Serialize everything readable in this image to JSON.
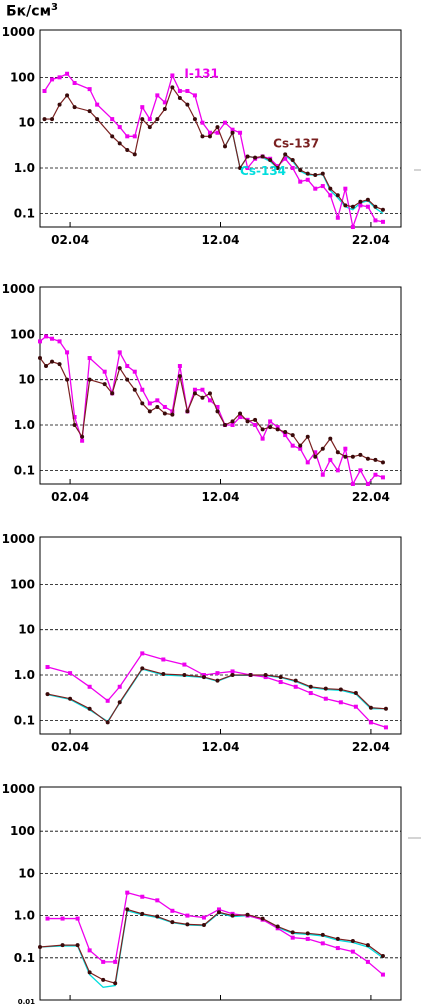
{
  "unit_label": "Бк/см3",
  "colors": {
    "I-131": "#ee00ee",
    "Cs-137": "#7a2020",
    "Cs-134": "#00dddd",
    "marker_dark": "#3a0a0a"
  },
  "chart_data": [
    {
      "type": "line",
      "yscale": "log",
      "ylim": [
        0.05,
        1000
      ],
      "xlim": [
        0,
        24
      ],
      "yticks": [
        "0.1",
        "1.0",
        "10",
        "100",
        "1000"
      ],
      "xticks": [
        "02.04",
        "12.04",
        "22.04"
      ],
      "grid": true,
      "series": [
        {
          "name": "I-131",
          "color": "#ee00ee",
          "x": [
            0.3,
            0.8,
            1.3,
            1.8,
            2.3,
            3.3,
            3.8,
            4.8,
            5.3,
            5.8,
            6.3,
            6.8,
            7.3,
            7.8,
            8.3,
            8.8,
            9.3,
            9.8,
            10.3,
            10.8,
            11.3,
            11.8,
            12.3,
            12.8,
            13.3,
            13.8,
            14.3,
            14.8,
            15.3,
            15.8,
            16.3,
            16.8,
            17.3,
            17.8,
            18.3,
            18.8,
            19.3,
            19.8,
            20.3,
            20.8,
            21.3,
            21.8,
            22.3,
            22.8
          ],
          "y": [
            50,
            90,
            100,
            120,
            75,
            55,
            25,
            12,
            8,
            5,
            5,
            22,
            12,
            40,
            28,
            110,
            50,
            50,
            40,
            10,
            6,
            6,
            10,
            7,
            6,
            1.0,
            1.6,
            1.8,
            1.6,
            1.1,
            1.6,
            1.0,
            0.5,
            0.55,
            0.35,
            0.4,
            0.25,
            0.08,
            0.35,
            0.05,
            0.15,
            0.14,
            0.07,
            0.065
          ]
        },
        {
          "name": "Cs-137",
          "color": "#7a2020",
          "x": [
            0.3,
            0.8,
            1.3,
            1.8,
            2.3,
            3.3,
            3.8,
            4.8,
            5.3,
            5.8,
            6.3,
            6.8,
            7.3,
            7.8,
            8.3,
            8.8,
            9.3,
            9.8,
            10.3,
            10.8,
            11.3,
            11.8,
            12.3,
            12.8,
            13.3,
            13.8,
            14.3,
            14.8,
            15.3,
            15.8,
            16.3,
            16.8,
            17.3,
            17.8,
            18.3,
            18.8,
            19.3,
            19.8,
            20.3,
            20.8,
            21.3,
            21.8,
            22.3,
            22.8
          ],
          "y": [
            12,
            12,
            25,
            40,
            22,
            18,
            12,
            5,
            3.5,
            2.5,
            2,
            12,
            8,
            12,
            20,
            60,
            35,
            25,
            12,
            5,
            5,
            8,
            3,
            6,
            1.0,
            1.8,
            1.7,
            1.8,
            1.5,
            1.0,
            2.0,
            1.5,
            0.9,
            0.75,
            0.7,
            0.75,
            0.35,
            0.25,
            0.15,
            0.14,
            0.18,
            0.2,
            0.14,
            0.12
          ]
        },
        {
          "name": "Cs-134",
          "color": "#00dddd",
          "x": [
            12.3,
            12.8,
            13.3,
            13.8,
            14.3,
            14.8,
            15.3,
            15.8,
            16.3,
            16.8,
            17.3,
            17.8,
            18.3,
            18.8,
            19.3,
            19.8,
            20.3,
            20.8,
            21.3,
            21.8,
            22.3,
            22.8
          ],
          "y": [
            3,
            6,
            1.0,
            1.8,
            1.7,
            1.7,
            1.4,
            1.0,
            1.9,
            1.4,
            0.85,
            0.7,
            0.7,
            0.72,
            0.32,
            0.22,
            0.14,
            0.12,
            0.17,
            0.19,
            0.13,
            0.1
          ]
        }
      ],
      "annotations": [
        "I-131",
        "Cs-137",
        "Cs-134"
      ]
    },
    {
      "type": "line",
      "yscale": "log",
      "ylim": [
        0.05,
        1000
      ],
      "xlim": [
        0,
        24
      ],
      "yticks": [
        "0.1",
        "1.0",
        "10",
        "100",
        "1000"
      ],
      "xticks": [
        "02.04",
        "12.04",
        "22.04"
      ],
      "grid": true,
      "series": [
        {
          "name": "I-131",
          "color": "#ee00ee",
          "x": [
            0,
            0.4,
            0.8,
            1.3,
            1.8,
            2.3,
            2.8,
            3.3,
            4.3,
            4.8,
            5.3,
            5.8,
            6.3,
            6.8,
            7.3,
            7.8,
            8.3,
            8.8,
            9.3,
            9.8,
            10.3,
            10.8,
            11.3,
            11.8,
            12.3,
            12.8,
            13.3,
            13.8,
            14.3,
            14.8,
            15.3,
            15.8,
            16.3,
            16.8,
            17.3,
            17.8,
            18.3,
            18.8,
            19.3,
            19.8,
            20.3,
            20.8,
            21.3,
            21.8,
            22.3,
            22.8
          ],
          "y": [
            70,
            90,
            80,
            70,
            40,
            1.5,
            0.45,
            30,
            15,
            5,
            40,
            20,
            15,
            6,
            3,
            3.5,
            2.5,
            2,
            20,
            2,
            6,
            6,
            3.5,
            2.5,
            1.0,
            1.0,
            1.5,
            1.3,
            1.0,
            0.5,
            1.2,
            0.9,
            0.6,
            0.35,
            0.3,
            0.15,
            0.25,
            0.08,
            0.17,
            0.1,
            0.3,
            0.05,
            0.1,
            0.05,
            0.08,
            0.07
          ]
        },
        {
          "name": "Cs-137",
          "color": "#7a2020",
          "x": [
            0,
            0.4,
            0.8,
            1.3,
            1.8,
            2.3,
            2.8,
            3.3,
            4.3,
            4.8,
            5.3,
            5.8,
            6.3,
            6.8,
            7.3,
            7.8,
            8.3,
            8.8,
            9.3,
            9.8,
            10.3,
            10.8,
            11.3,
            11.8,
            12.3,
            12.8,
            13.3,
            13.8,
            14.3,
            14.8,
            15.3,
            15.8,
            16.3,
            16.8,
            17.3,
            17.8,
            18.3,
            18.8,
            19.3,
            19.8,
            20.3,
            20.8,
            21.3,
            21.8,
            22.3,
            22.8
          ],
          "y": [
            30,
            20,
            25,
            22,
            10,
            1.0,
            0.55,
            10,
            8,
            5,
            18,
            10,
            6,
            3,
            2,
            2.5,
            1.8,
            1.7,
            12,
            2,
            5,
            4,
            5,
            2,
            1.0,
            1.2,
            1.8,
            1.2,
            1.3,
            0.8,
            0.9,
            0.8,
            0.7,
            0.6,
            0.35,
            0.55,
            0.2,
            0.3,
            0.5,
            0.25,
            0.2,
            0.2,
            0.22,
            0.18,
            0.17,
            0.15
          ]
        }
      ]
    },
    {
      "type": "line",
      "yscale": "log",
      "ylim": [
        0.05,
        1000
      ],
      "xlim": [
        0,
        24
      ],
      "yticks": [
        "0.1",
        "1.0",
        "10",
        "100",
        "1000"
      ],
      "xticks": [
        "02.04",
        "12.04",
        "22.04"
      ],
      "grid": true,
      "series": [
        {
          "name": "I-131",
          "color": "#ee00ee",
          "x": [
            0.5,
            2,
            3.3,
            4.5,
            5.3,
            6.8,
            8.2,
            9.6,
            10.9,
            11.8,
            12.8,
            14,
            15,
            16,
            17,
            18,
            19,
            20,
            21,
            22,
            23
          ],
          "y": [
            1.5,
            1.1,
            0.55,
            0.27,
            0.55,
            3.0,
            2.2,
            1.7,
            1.0,
            1.1,
            1.2,
            1.0,
            0.9,
            0.7,
            0.55,
            0.4,
            0.3,
            0.25,
            0.2,
            0.09,
            0.07
          ]
        },
        {
          "name": "Cs-137",
          "color": "#7a2020",
          "x": [
            0.5,
            2,
            3.3,
            4.5,
            5.3,
            6.8,
            8.2,
            9.6,
            10.9,
            11.8,
            12.8,
            14,
            15,
            16,
            17,
            18,
            19,
            20,
            21,
            22,
            23
          ],
          "y": [
            0.38,
            0.3,
            0.18,
            0.09,
            0.25,
            1.4,
            1.05,
            1.0,
            0.9,
            0.75,
            1.0,
            1.0,
            1.0,
            0.9,
            0.75,
            0.55,
            0.5,
            0.48,
            0.4,
            0.19,
            0.18
          ]
        },
        {
          "name": "Cs-134",
          "color": "#00dddd",
          "x": [
            0.5,
            2,
            3.3,
            4.5,
            5.3,
            6.8,
            8.2,
            9.6,
            10.9,
            11.8,
            12.8,
            14,
            15,
            16,
            17,
            18,
            19,
            20,
            21,
            22,
            23
          ],
          "y": [
            0.37,
            0.29,
            0.17,
            0.095,
            0.24,
            1.35,
            1.0,
            0.95,
            0.88,
            0.73,
            0.98,
            0.98,
            0.97,
            0.88,
            0.72,
            0.53,
            0.48,
            0.46,
            0.38,
            0.18,
            0.18
          ]
        }
      ]
    },
    {
      "type": "line",
      "yscale": "log",
      "ylim": [
        0.01,
        1000
      ],
      "xlim": [
        0,
        24
      ],
      "yticks": [
        "0.01",
        "0.1",
        "1.0",
        "10",
        "100",
        "1000"
      ],
      "xticks": [
        "02.04",
        "12.04",
        "22.04"
      ],
      "grid": true,
      "series": [
        {
          "name": "I-131",
          "color": "#ee00ee",
          "x": [
            0.5,
            1.5,
            2.5,
            3.3,
            4.2,
            5,
            5.8,
            6.8,
            7.8,
            8.8,
            9.8,
            10.9,
            11.9,
            12.8,
            13.8,
            14.8,
            15.8,
            16.8,
            17.8,
            18.8,
            19.8,
            20.8,
            21.8,
            22.8
          ],
          "y": [
            0.85,
            0.85,
            0.85,
            0.15,
            0.08,
            0.08,
            3.5,
            2.8,
            2.3,
            1.3,
            1.0,
            0.9,
            1.4,
            1.1,
            1.0,
            0.8,
            0.5,
            0.3,
            0.28,
            0.22,
            0.17,
            0.14,
            0.08,
            0.04
          ]
        },
        {
          "name": "Cs-137",
          "color": "#7a2020",
          "x": [
            0,
            1.5,
            2.5,
            3.3,
            4.2,
            5,
            5.8,
            6.8,
            7.8,
            8.8,
            9.8,
            10.9,
            11.9,
            12.8,
            13.8,
            14.8,
            15.8,
            16.8,
            17.8,
            18.8,
            19.8,
            20.8,
            21.8,
            22.8
          ],
          "y": [
            0.18,
            0.2,
            0.2,
            0.045,
            0.03,
            0.025,
            1.4,
            1.1,
            0.95,
            0.7,
            0.62,
            0.6,
            1.2,
            1.0,
            1.05,
            0.85,
            0.55,
            0.4,
            0.38,
            0.35,
            0.28,
            0.25,
            0.2,
            0.11
          ]
        },
        {
          "name": "Cs-134",
          "color": "#00dddd",
          "x": [
            0,
            1.5,
            2.5,
            3.3,
            4.2,
            5,
            5.8,
            6.8,
            7.8,
            8.8,
            9.8,
            10.9,
            11.9,
            12.8,
            13.8,
            14.8,
            15.8,
            16.8,
            17.8,
            18.8,
            19.8,
            20.8,
            21.8,
            22.8
          ],
          "y": [
            0.18,
            0.19,
            0.19,
            0.04,
            0.02,
            0.022,
            1.3,
            1.05,
            0.9,
            0.68,
            0.6,
            0.58,
            1.15,
            0.95,
            1.0,
            0.82,
            0.52,
            0.38,
            0.36,
            0.33,
            0.26,
            0.23,
            0.18,
            0.1
          ]
        }
      ]
    }
  ]
}
